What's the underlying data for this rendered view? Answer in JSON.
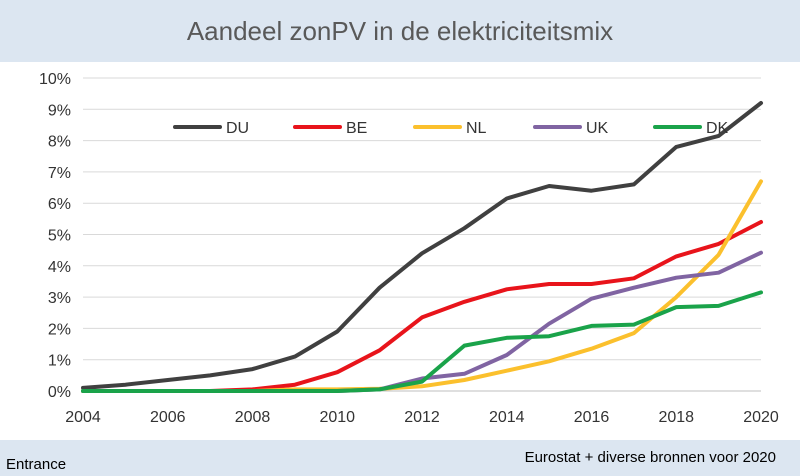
{
  "chart_data": {
    "type": "line",
    "title": "Aandeel zonPV in de elektriciteitsmix",
    "xlabel": "",
    "ylabel": "",
    "x": [
      2004,
      2005,
      2006,
      2007,
      2008,
      2009,
      2010,
      2011,
      2012,
      2013,
      2014,
      2015,
      2016,
      2017,
      2018,
      2019,
      2020
    ],
    "x_ticks": [
      "2004",
      "2006",
      "2008",
      "2010",
      "2012",
      "2014",
      "2016",
      "2018",
      "2020"
    ],
    "y_ticks": [
      "0%",
      "1%",
      "2%",
      "3%",
      "4%",
      "5%",
      "6%",
      "7%",
      "8%",
      "9%",
      "10%"
    ],
    "xlim": [
      2004,
      2020
    ],
    "ylim": [
      0,
      10
    ],
    "grid": true,
    "legend_position": "top-left",
    "series": [
      {
        "name": "DU",
        "color": "#404040",
        "values": [
          0.1,
          0.2,
          0.35,
          0.5,
          0.7,
          1.1,
          1.9,
          3.3,
          4.4,
          5.2,
          6.15,
          6.55,
          6.4,
          6.6,
          7.8,
          8.15,
          9.2
        ]
      },
      {
        "name": "BE",
        "color": "#e8141b",
        "values": [
          0.0,
          0.0,
          0.0,
          0.0,
          0.05,
          0.2,
          0.6,
          1.3,
          2.35,
          2.85,
          3.25,
          3.42,
          3.42,
          3.6,
          4.3,
          4.7,
          5.4
        ]
      },
      {
        "name": "NL",
        "color": "#fbc02d",
        "values": [
          0.0,
          0.0,
          0.0,
          0.0,
          0.0,
          0.05,
          0.05,
          0.07,
          0.15,
          0.35,
          0.65,
          0.95,
          1.35,
          1.85,
          3.0,
          4.35,
          6.7
        ]
      },
      {
        "name": "UK",
        "color": "#8064a2",
        "values": [
          0.0,
          0.0,
          0.0,
          0.0,
          0.0,
          0.0,
          0.0,
          0.05,
          0.4,
          0.55,
          1.15,
          2.15,
          2.95,
          3.3,
          3.62,
          3.78,
          4.42
        ]
      },
      {
        "name": "DK",
        "color": "#1aa34a",
        "values": [
          0.0,
          0.0,
          0.0,
          0.0,
          0.0,
          0.0,
          0.0,
          0.05,
          0.3,
          1.45,
          1.7,
          1.75,
          2.08,
          2.12,
          2.68,
          2.72,
          3.15
        ]
      }
    ]
  },
  "footer": {
    "left": "Entrance",
    "right": "Eurostat + diverse bronnen voor 2020"
  },
  "colors": {
    "background": "#dce6f1",
    "plot_background": "#ffffff",
    "gridline": "#d9d9d9"
  }
}
